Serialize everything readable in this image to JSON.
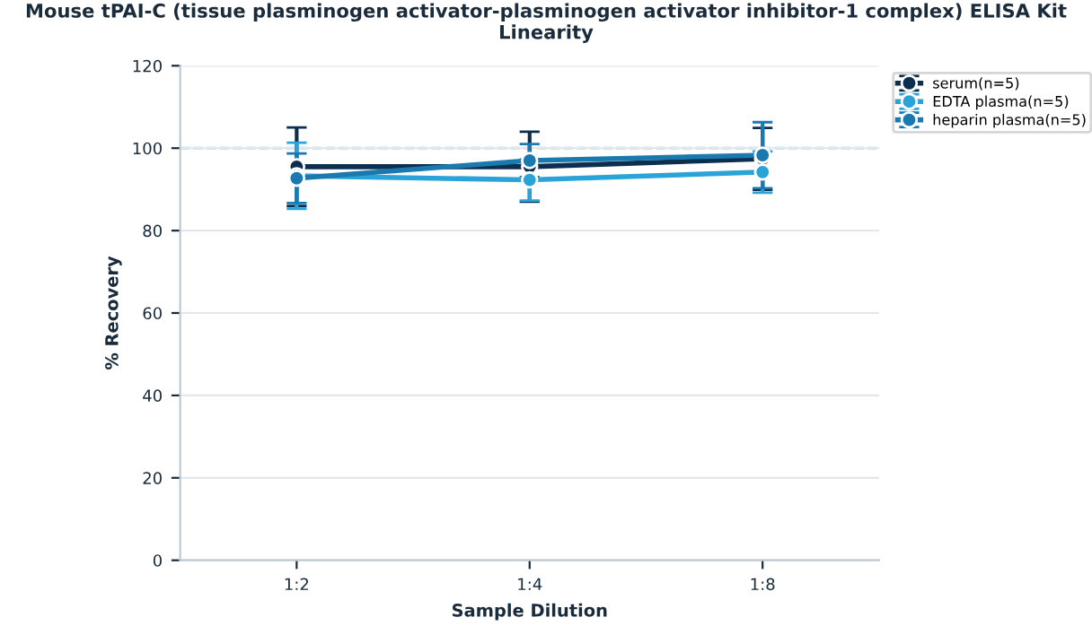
{
  "chart_data": {
    "type": "line",
    "title": "Mouse tPAI-C (tissue plasminogen activator-plasminogen activator inhibitor-1 complex) ELISA Kit\nLinearity",
    "xlabel": "Sample Dilution",
    "ylabel": "% Recovery",
    "categories": [
      "1:2",
      "1:4",
      "1:8"
    ],
    "series": [
      {
        "name": "serum(n=5)",
        "color": "#0d2f4f",
        "values": [
          95.5,
          95.5,
          97.4
        ],
        "errors": [
          9.5,
          8.5,
          7.5
        ]
      },
      {
        "name": "EDTA plasma(n=5)",
        "color": "#2aa3d8",
        "values": [
          93.3,
          92.3,
          94.2
        ],
        "errors": [
          8,
          5,
          5
        ]
      },
      {
        "name": "heparin plasma(n=5)",
        "color": "#1a7ab0",
        "values": [
          92.7,
          97,
          98.3
        ],
        "errors": [
          6,
          4,
          8
        ]
      }
    ],
    "ylim": [
      0,
      120
    ],
    "yticks": [
      0,
      20,
      40,
      60,
      80,
      100,
      120
    ],
    "grid": "y",
    "legend": "top right",
    "marker": "circle",
    "line_style": "solid",
    "ref_lines": [
      {
        "axis": "y",
        "value": 100,
        "color": "#8ec5dd",
        "line_style": "dashed"
      }
    ]
  }
}
